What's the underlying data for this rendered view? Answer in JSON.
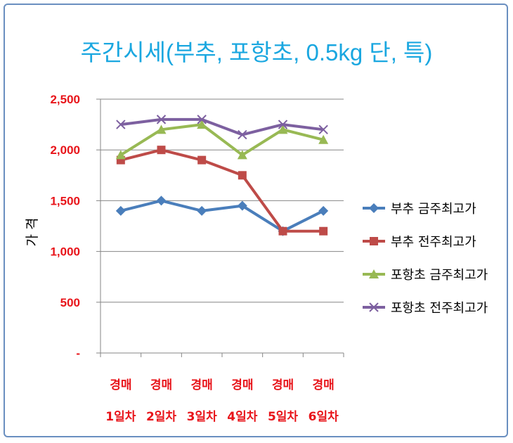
{
  "chart_data": {
    "type": "line",
    "title": "주간시세(부추, 포항초, 0.5kg 단, 특)",
    "ylabel": "가 격",
    "xlabel": "",
    "ylim": [
      0,
      2500
    ],
    "y_ticks": [
      {
        "value": 0,
        "label": "-"
      },
      {
        "value": 500,
        "label": "500"
      },
      {
        "value": 1000,
        "label": "1,000"
      },
      {
        "value": 1500,
        "label": "1,500"
      },
      {
        "value": 2000,
        "label": "2,000"
      },
      {
        "value": 2500,
        "label": "2,500"
      }
    ],
    "categories": [
      {
        "line1": "경매",
        "line2": "1일차"
      },
      {
        "line1": "경매",
        "line2": "2일차"
      },
      {
        "line1": "경매",
        "line2": "3일차"
      },
      {
        "line1": "경매",
        "line2": "4일차"
      },
      {
        "line1": "경매",
        "line2": "5일차"
      },
      {
        "line1": "경매",
        "line2": "6일차"
      }
    ],
    "grid": true,
    "legend_position": "right",
    "series": [
      {
        "name": "부추 금주최고가",
        "color": "#4a7ebb",
        "marker": "diamond",
        "values": [
          1400,
          1500,
          1400,
          1450,
          1200,
          1400
        ]
      },
      {
        "name": "부추 전주최고가",
        "color": "#be4b48",
        "marker": "square",
        "values": [
          1900,
          2000,
          1900,
          1750,
          1200,
          1200
        ]
      },
      {
        "name": "포항초 금주최고가",
        "color": "#98b954",
        "marker": "triangle",
        "values": [
          1950,
          2200,
          2250,
          1950,
          2200,
          2100
        ]
      },
      {
        "name": "포항초 전주최고가",
        "color": "#7d60a0",
        "marker": "x",
        "values": [
          2250,
          2300,
          2300,
          2150,
          2250,
          2200
        ]
      }
    ],
    "colors": {
      "title": "#1aa7e0",
      "tick_labels": "#e8141a",
      "axis_title": "#000000",
      "grid": "#868686"
    }
  }
}
